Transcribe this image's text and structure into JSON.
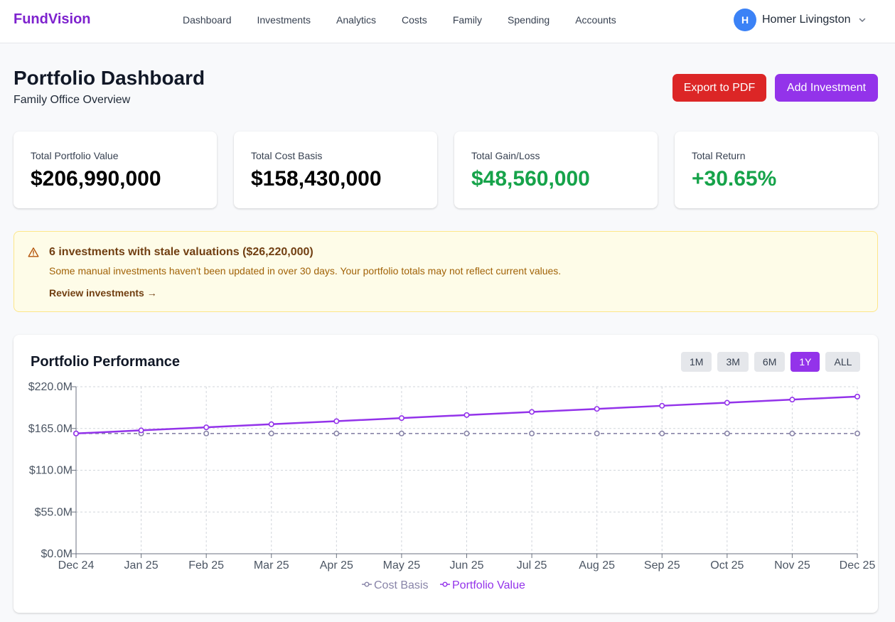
{
  "brand": "FundVision",
  "nav": [
    {
      "label": "Dashboard",
      "active": true
    },
    {
      "label": "Investments",
      "active": false
    },
    {
      "label": "Analytics",
      "active": false
    },
    {
      "label": "Costs",
      "active": false
    },
    {
      "label": "Family",
      "active": false
    },
    {
      "label": "Spending",
      "active": false
    },
    {
      "label": "Accounts",
      "active": false
    }
  ],
  "user": {
    "initial": "H",
    "name": "Homer Livingston"
  },
  "header": {
    "title": "Portfolio Dashboard",
    "subtitle": "Family Office Overview",
    "export_label": "Export to PDF",
    "add_label": "Add Investment"
  },
  "stats": [
    {
      "label": "Total Portfolio Value",
      "value": "$206,990,000",
      "positive": false
    },
    {
      "label": "Total Cost Basis",
      "value": "$158,430,000",
      "positive": false
    },
    {
      "label": "Total Gain/Loss",
      "value": "$48,560,000",
      "positive": true
    },
    {
      "label": "Total Return",
      "value": "+30.65%",
      "positive": true
    }
  ],
  "alert": {
    "title": "6 investments with stale valuations ($26,220,000)",
    "body": "Some manual investments haven't been updated in over 30 days. Your portfolio totals may not reflect current values.",
    "link": "Review investments →"
  },
  "colors": {
    "accent": "#9333ea",
    "danger": "#dc2626",
    "positive": "#16a34a",
    "cost_basis": "#8884a8",
    "portfolio_value": "#9333ea"
  },
  "performance": {
    "title": "Portfolio Performance",
    "ranges": [
      {
        "label": "1M",
        "active": false
      },
      {
        "label": "3M",
        "active": false
      },
      {
        "label": "6M",
        "active": false
      },
      {
        "label": "1Y",
        "active": true
      },
      {
        "label": "ALL",
        "active": false
      }
    ]
  },
  "chart_data": {
    "type": "line",
    "x": [
      "Dec 24",
      "Jan 25",
      "Feb 25",
      "Mar 25",
      "Apr 25",
      "May 25",
      "Jun 25",
      "Jul 25",
      "Aug 25",
      "Sep 25",
      "Oct 25",
      "Nov 25",
      "Dec 25"
    ],
    "yticks": [
      "$0.0M",
      "$55.0M",
      "$110.0M",
      "$165.0M",
      "$220.0M"
    ],
    "ylim": [
      0,
      220
    ],
    "grid": true,
    "legend_position": "bottom",
    "series": [
      {
        "name": "Cost Basis",
        "values": [
          158.4,
          158.4,
          158.4,
          158.4,
          158.4,
          158.4,
          158.4,
          158.4,
          158.4,
          158.4,
          158.4,
          158.4,
          158.4
        ]
      },
      {
        "name": "Portfolio Value",
        "values": [
          158.4,
          162.5,
          166.5,
          170.6,
          174.6,
          178.7,
          182.7,
          186.8,
          190.8,
          194.9,
          198.9,
          203.0,
          207.0
        ]
      }
    ]
  }
}
